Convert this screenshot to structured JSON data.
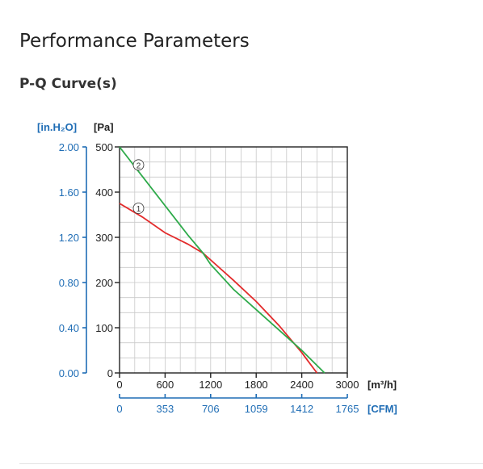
{
  "page": {
    "title": "Performance Parameters",
    "subtitle": "P-Q Curve(s)"
  },
  "colors": {
    "blue": "#1f6db5",
    "grid": "#c8c8c8",
    "red": "#e32b2b",
    "green": "#2eaa4a"
  },
  "chart_data": {
    "type": "line",
    "title": "",
    "xlabel": "[m³/h]",
    "xlabel_secondary": "[CFM]",
    "ylabel": "[Pa]",
    "ylabel_secondary": "[in.H₂O]",
    "xlim": [
      0,
      3000
    ],
    "ylim": [
      0,
      500
    ],
    "grid": true,
    "x_ticks": [
      "0",
      "600",
      "1200",
      "1800",
      "2400",
      "3000"
    ],
    "x_ticks_cfm": [
      "0",
      "353",
      "706",
      "1059",
      "1412",
      "1765"
    ],
    "y_ticks": [
      "0",
      "100",
      "200",
      "300",
      "400",
      "500"
    ],
    "y_ticks_inh2o": [
      "0.00",
      "0.40",
      "0.80",
      "1.20",
      "1.60",
      "2.00"
    ],
    "series": [
      {
        "name": "1",
        "color": "#e32b2b",
        "x": [
          0,
          300,
          600,
          900,
          1100,
          1200,
          1500,
          1800,
          2100,
          2400,
          2600
        ],
        "y": [
          375,
          345,
          310,
          285,
          265,
          250,
          205,
          158,
          105,
          45,
          0
        ]
      },
      {
        "name": "2",
        "color": "#2eaa4a",
        "x": [
          0,
          300,
          600,
          900,
          1100,
          1200,
          1500,
          1800,
          2100,
          2400,
          2700
        ],
        "y": [
          500,
          435,
          370,
          305,
          265,
          240,
          185,
          140,
          95,
          50,
          0
        ]
      }
    ]
  }
}
